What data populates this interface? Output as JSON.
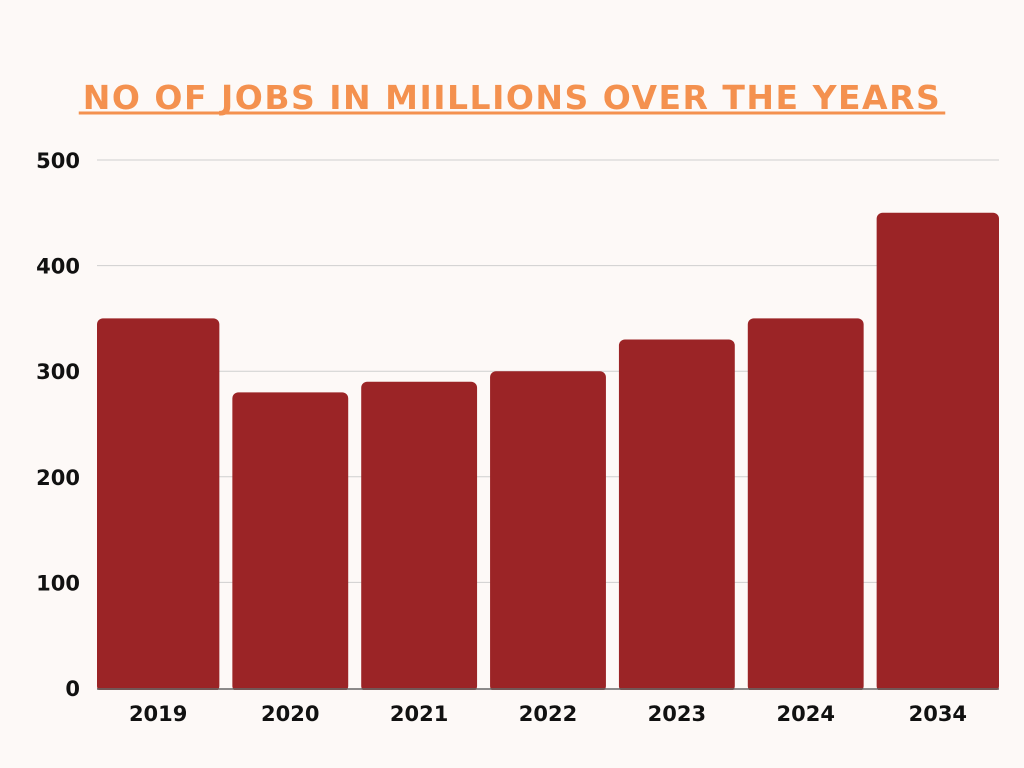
{
  "chart_data": {
    "type": "bar",
    "title": "NO OF JOBS IN MIILLIONS OVER THE YEARS",
    "xlabel": "",
    "ylabel": "",
    "categories": [
      "2019",
      "2020",
      "2021",
      "2022",
      "2023",
      "2024",
      "2034"
    ],
    "values": [
      350,
      280,
      290,
      300,
      330,
      350,
      450
    ],
    "ylim": [
      0,
      500
    ],
    "yticks": [
      "0",
      "100",
      "200",
      "300",
      "400",
      "500"
    ],
    "grid": true,
    "legend": "none",
    "colors": {
      "bar": "#9b2426",
      "title": "#f4914f",
      "grid": "#cfcfcf",
      "axis": "#666666"
    }
  }
}
